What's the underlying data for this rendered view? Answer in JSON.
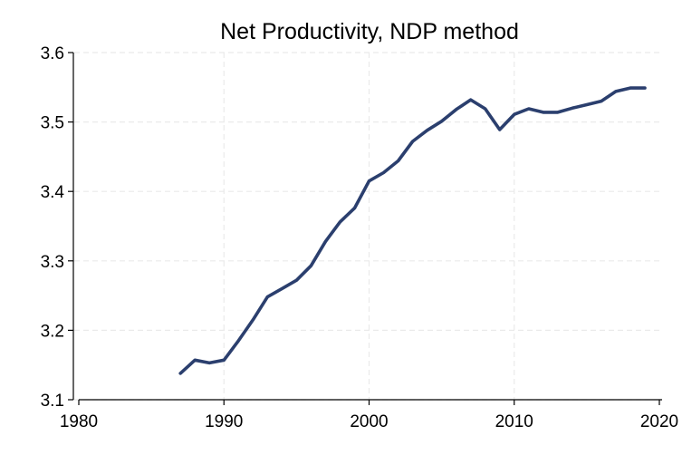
{
  "chart_data": {
    "type": "line",
    "title": "Net Productivity, NDP method",
    "xlabel": "",
    "ylabel": "",
    "xlim": [
      1980,
      2020
    ],
    "ylim": [
      3.1,
      3.6
    ],
    "xticks": [
      1980,
      1990,
      2000,
      2010,
      2020
    ],
    "xtick_labels": [
      "1980",
      "1990",
      "2000",
      "2010",
      "2020"
    ],
    "yticks": [
      3.1,
      3.2,
      3.3,
      3.4,
      3.5,
      3.6
    ],
    "ytick_labels": [
      "3.1",
      "3.2",
      "3.3",
      "3.4",
      "3.5",
      "3.6"
    ],
    "grid": true,
    "legend": "none",
    "line_color": "#2b3f6e",
    "series": [
      {
        "x": [
          1987,
          1988,
          1989,
          1990,
          1991,
          1992,
          1993,
          1994,
          1995,
          1996,
          1997,
          1998,
          1999,
          2000,
          2001,
          2002,
          2003,
          2004,
          2005,
          2006,
          2007,
          2008,
          2009,
          2010,
          2011,
          2012,
          2013,
          2014,
          2015,
          2016,
          2017,
          2018,
          2019
        ],
        "values": [
          3.138,
          3.157,
          3.153,
          3.157,
          3.185,
          3.215,
          3.248,
          3.26,
          3.272,
          3.293,
          3.328,
          3.356,
          3.376,
          3.415,
          3.427,
          3.444,
          3.472,
          3.488,
          3.501,
          3.518,
          3.532,
          3.519,
          3.489,
          3.511,
          3.519,
          3.514,
          3.514,
          3.52,
          3.525,
          3.53,
          3.544,
          3.549,
          3.549
        ]
      }
    ]
  }
}
